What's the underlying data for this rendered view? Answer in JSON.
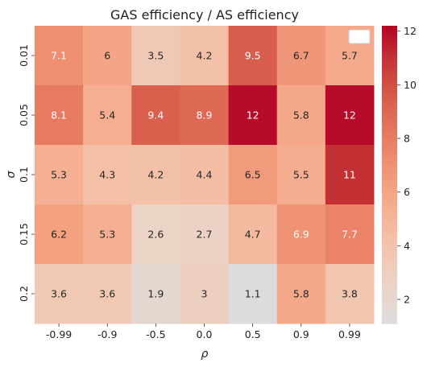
{
  "chart_data": {
    "type": "heatmap",
    "title": "GAS efficiency / AS efficiency",
    "xlabel": "ρ",
    "ylabel": "σ",
    "x_categories": [
      "-0.99",
      "-0.9",
      "-0.5",
      "0.0",
      "0.5",
      "0.9",
      "0.99"
    ],
    "y_categories": [
      "0.01",
      "0.05",
      "0.1",
      "0.15",
      "0.2"
    ],
    "values": [
      [
        7.1,
        6,
        3.5,
        4.2,
        9.5,
        6.7,
        5.7
      ],
      [
        8.1,
        5.4,
        9.4,
        8.9,
        12,
        5.8,
        12
      ],
      [
        5.3,
        4.3,
        4.2,
        4.4,
        6.5,
        5.5,
        11
      ],
      [
        6.2,
        5.3,
        2.6,
        2.7,
        4.7,
        6.9,
        7.7
      ],
      [
        3.6,
        3.6,
        1.9,
        3,
        1.1,
        5.8,
        3.8
      ]
    ],
    "value_range": [
      1.1,
      12.2
    ],
    "colormap": "coolwarm (center)",
    "colorbar_ticks": [
      "2",
      "4",
      "6",
      "8",
      "10",
      "12"
    ],
    "colorbar_tick_values": [
      2,
      4,
      6,
      8,
      10,
      12
    ],
    "legend": "top-right, empty",
    "grid": false
  }
}
